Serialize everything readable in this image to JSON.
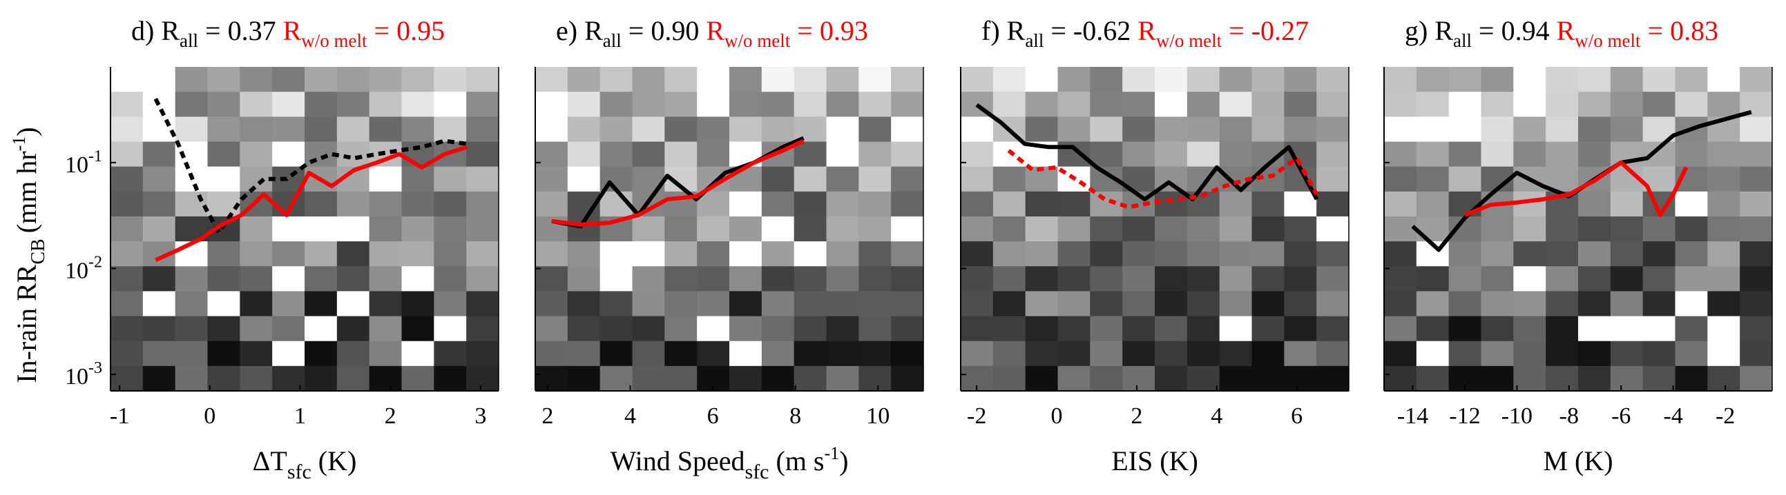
{
  "ylabel": "In-rain RR",
  "ylabel_sub": "CB",
  "ylabel_unit_open": "(mm hr",
  "ylabel_unit_sup": "-1",
  "ylabel_unit_close": ")",
  "yticks": [
    {
      "base": "10",
      "exp": "-1",
      "value": 0.1
    },
    {
      "base": "10",
      "exp": "-2",
      "value": 0.01
    },
    {
      "base": "10",
      "exp": "-3",
      "value": 0.001
    }
  ],
  "colors": {
    "all": "#000000",
    "no_melt": "#ff0000"
  },
  "chart_data": [
    {
      "type": "heatmap",
      "panel": "d)",
      "r_all_label": "R",
      "r_all_sub": "all",
      "r_all_value": "= 0.37",
      "r_nomelt_label": "R",
      "r_nomelt_sub": "w/o melt",
      "r_nomelt_value": "= 0.95",
      "xlabel_main": "ΔT",
      "xlabel_sub": "sfc",
      "xlabel_unit": "(K)",
      "xlabel_unit_sup": "",
      "xlabel_unit_after": "",
      "x_scale": "linear",
      "y_scale": "log",
      "xlim": [
        -1.1,
        3.2
      ],
      "ylim": [
        0.0007,
        0.8
      ],
      "xticks": [
        {
          "v": -1,
          "t": "-1"
        },
        {
          "v": 0,
          "t": "0"
        },
        {
          "v": 1,
          "t": "1"
        },
        {
          "v": 2,
          "t": "2"
        },
        {
          "v": 3,
          "t": "3"
        }
      ],
      "series": [
        {
          "style": "dotted",
          "color": "#000000",
          "x": [
            -0.6,
            -0.35,
            -0.1,
            0.1,
            0.35,
            0.6,
            0.85,
            1.1,
            1.35,
            1.6,
            1.85,
            2.1,
            2.35,
            2.6,
            2.85
          ],
          "y": [
            0.4,
            0.15,
            0.045,
            0.022,
            0.045,
            0.07,
            0.07,
            0.1,
            0.12,
            0.11,
            0.12,
            0.13,
            0.14,
            0.16,
            0.15
          ]
        },
        {
          "style": "solid",
          "color": "#ff0000",
          "x": [
            -0.6,
            -0.35,
            -0.1,
            0.1,
            0.35,
            0.6,
            0.85,
            1.1,
            1.35,
            1.6,
            1.85,
            2.1,
            2.35,
            2.6,
            2.85
          ],
          "y": [
            0.012,
            0.015,
            0.019,
            0.025,
            0.032,
            0.05,
            0.032,
            0.08,
            0.06,
            0.085,
            0.1,
            0.12,
            0.09,
            0.12,
            0.14
          ]
        }
      ]
    },
    {
      "type": "heatmap",
      "panel": "e)",
      "r_all_label": "R",
      "r_all_sub": "all",
      "r_all_value": "= 0.90",
      "r_nomelt_label": "R",
      "r_nomelt_sub": "w/o melt",
      "r_nomelt_value": "= 0.93",
      "xlabel_main": "Wind Speed",
      "xlabel_sub": "sfc",
      "xlabel_unit": "(m s",
      "xlabel_unit_sup": "-1",
      "xlabel_unit_after": ")",
      "x_scale": "linear",
      "y_scale": "log",
      "xlim": [
        1.7,
        11.1
      ],
      "ylim": [
        0.0007,
        0.8
      ],
      "xticks": [
        {
          "v": 2,
          "t": "2"
        },
        {
          "v": 4,
          "t": "4"
        },
        {
          "v": 6,
          "t": "6"
        },
        {
          "v": 8,
          "t": "8"
        },
        {
          "v": 10,
          "t": "10"
        }
      ],
      "series": [
        {
          "style": "solid",
          "color": "#000000",
          "x": [
            2.1,
            2.8,
            3.5,
            4.2,
            4.9,
            5.6,
            6.3,
            7.0,
            7.7,
            8.2
          ],
          "y": [
            0.028,
            0.025,
            0.065,
            0.032,
            0.075,
            0.045,
            0.08,
            0.1,
            0.14,
            0.17
          ]
        },
        {
          "style": "solid",
          "color": "#ff0000",
          "x": [
            2.1,
            2.8,
            3.5,
            4.2,
            4.9,
            5.6,
            6.3,
            7.0,
            7.7,
            8.2
          ],
          "y": [
            0.028,
            0.026,
            0.027,
            0.032,
            0.045,
            0.048,
            0.07,
            0.1,
            0.13,
            0.16
          ]
        }
      ]
    },
    {
      "type": "heatmap",
      "panel": "f)",
      "r_all_label": "R",
      "r_all_sub": "all",
      "r_all_value": "= -0.62",
      "r_nomelt_label": "R",
      "r_nomelt_sub": "w/o melt",
      "r_nomelt_value": "= -0.27",
      "xlabel_main": "EIS (K)",
      "xlabel_sub": "",
      "xlabel_unit": "",
      "xlabel_unit_sup": "",
      "xlabel_unit_after": "",
      "x_scale": "linear",
      "y_scale": "log",
      "xlim": [
        -2.4,
        7.3
      ],
      "ylim": [
        0.0007,
        0.8
      ],
      "xticks": [
        {
          "v": -2,
          "t": "-2"
        },
        {
          "v": 0,
          "t": "0"
        },
        {
          "v": 2,
          "t": "2"
        },
        {
          "v": 4,
          "t": "4"
        },
        {
          "v": 6,
          "t": "6"
        }
      ],
      "series": [
        {
          "style": "solid",
          "color": "#000000",
          "x": [
            -2.0,
            -1.4,
            -0.8,
            -0.2,
            0.4,
            1.0,
            1.6,
            2.2,
            2.8,
            3.4,
            4.0,
            4.6,
            5.2,
            5.8,
            6.5
          ],
          "y": [
            0.35,
            0.24,
            0.15,
            0.14,
            0.14,
            0.09,
            0.065,
            0.045,
            0.065,
            0.045,
            0.09,
            0.055,
            0.09,
            0.14,
            0.045
          ]
        },
        {
          "style": "dotted",
          "color": "#ff0000",
          "x": [
            -1.2,
            -0.6,
            0.0,
            0.6,
            1.2,
            1.8,
            2.4,
            3.0,
            3.6,
            4.2,
            4.8,
            5.4,
            6.0,
            6.5
          ],
          "y": [
            0.13,
            0.085,
            0.09,
            0.065,
            0.045,
            0.038,
            0.042,
            0.045,
            0.048,
            0.06,
            0.07,
            0.075,
            0.11,
            0.05
          ]
        }
      ]
    },
    {
      "type": "heatmap",
      "panel": "g)",
      "r_all_label": "R",
      "r_all_sub": "all",
      "r_all_value": "= 0.94",
      "r_nomelt_label": "R",
      "r_nomelt_sub": "w/o melt",
      "r_nomelt_value": "= 0.83",
      "xlabel_main": "M (K)",
      "xlabel_sub": "",
      "xlabel_unit": "",
      "xlabel_unit_sup": "",
      "xlabel_unit_after": "",
      "x_scale": "linear",
      "y_scale": "log",
      "xlim": [
        -15.1,
        -0.2
      ],
      "ylim": [
        0.0007,
        0.8
      ],
      "xticks": [
        {
          "v": -14,
          "t": "-14"
        },
        {
          "v": -12,
          "t": "-12"
        },
        {
          "v": -10,
          "t": "-10"
        },
        {
          "v": -8,
          "t": "-8"
        },
        {
          "v": -6,
          "t": "-6"
        },
        {
          "v": -4,
          "t": "-4"
        },
        {
          "v": -2,
          "t": "-2"
        }
      ],
      "series": [
        {
          "style": "solid",
          "color": "#000000",
          "x": [
            -14.0,
            -13.0,
            -12.0,
            -11.0,
            -10.0,
            -9.0,
            -8.0,
            -7.0,
            -6.0,
            -5.0,
            -4.0,
            -3.0,
            -1.0
          ],
          "y": [
            0.025,
            0.015,
            0.03,
            0.05,
            0.08,
            0.06,
            0.048,
            0.07,
            0.1,
            0.11,
            0.18,
            0.22,
            0.3
          ]
        },
        {
          "style": "solid",
          "color": "#ff0000",
          "x": [
            -12.0,
            -11.0,
            -10.0,
            -9.0,
            -8.0,
            -7.0,
            -6.0,
            -5.0,
            -4.5,
            -4.0,
            -3.5
          ],
          "y": [
            0.032,
            0.04,
            0.042,
            0.045,
            0.05,
            0.068,
            0.1,
            0.06,
            0.032,
            0.05,
            0.09
          ]
        }
      ]
    }
  ]
}
